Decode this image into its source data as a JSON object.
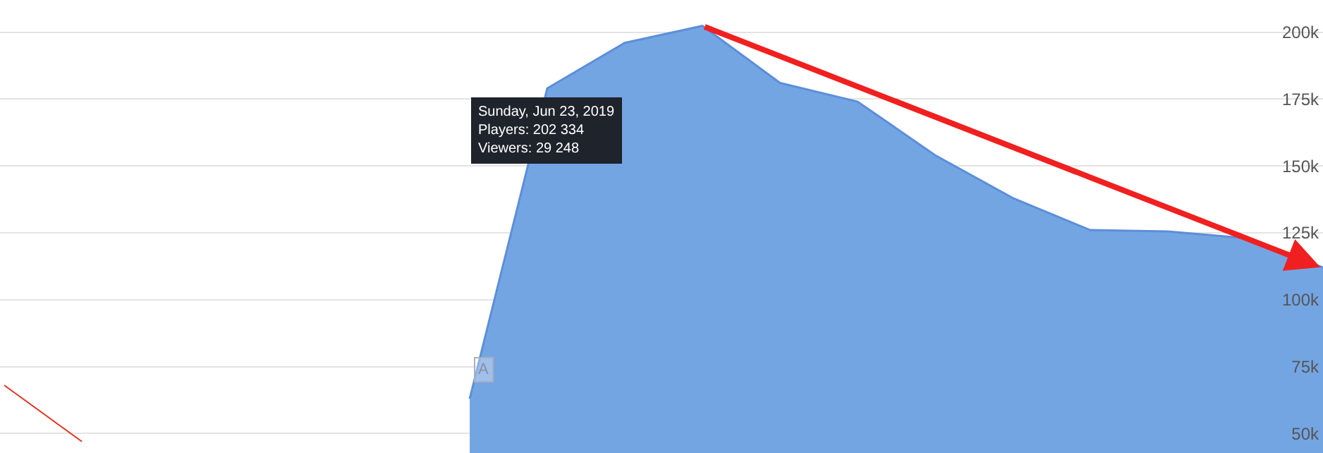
{
  "chart_data": {
    "type": "area",
    "categories": [
      null,
      null,
      null,
      null,
      null,
      null,
      null,
      null,
      null,
      null,
      null,
      null,
      null,
      null,
      null,
      null,
      null,
      null
    ],
    "series": [
      {
        "color": "#74a5e3",
        "values": [
          null,
          null,
          null,
          null,
          null,
          null,
          63000,
          179000,
          196000,
          202334,
          181000,
          174000,
          154000,
          138000,
          126000,
          125500,
          123000,
          112000
        ]
      },
      {
        "type": "line",
        "color": "#e0301e",
        "values": [
          68000,
          47000,
          null,
          null,
          null,
          null,
          null,
          null,
          null,
          null,
          null,
          null,
          null,
          null,
          null,
          null,
          null,
          null
        ]
      }
    ],
    "ylim": [
      42700,
      212000
    ],
    "yticks": [
      {
        "value": 50000,
        "label": "50k"
      },
      {
        "value": 75000,
        "label": "75k"
      },
      {
        "value": 100000,
        "label": "100k"
      },
      {
        "value": 125000,
        "label": "125k"
      },
      {
        "value": 150000,
        "label": "150k"
      },
      {
        "value": 175000,
        "label": "175k"
      },
      {
        "value": 200000,
        "label": "200k"
      }
    ],
    "grid": "y",
    "tick_labels": "y",
    "annotations": [
      "Sunday, Jun 23, 2019\nPlayers: 202 334\nViewers: 29 248",
      "A"
    ]
  }
}
